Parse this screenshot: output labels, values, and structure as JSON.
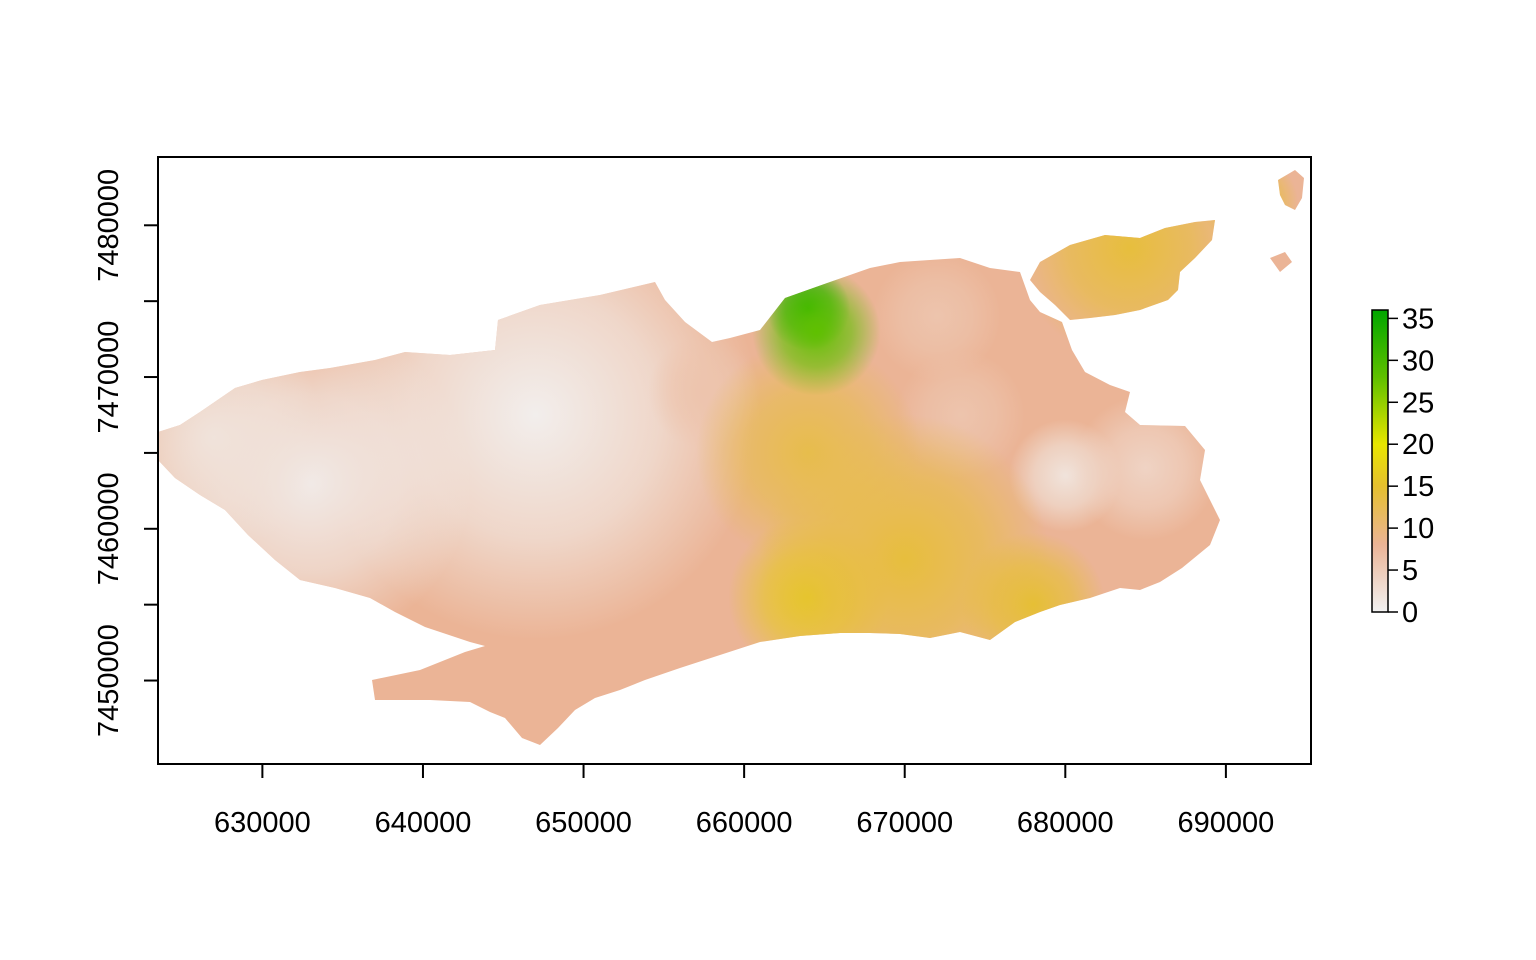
{
  "chart_data": {
    "type": "heatmap",
    "title": "",
    "xlabel": "",
    "ylabel": "",
    "xlim": [
      623500,
      695300
    ],
    "ylim": [
      7444500,
      7484500
    ],
    "x_ticks": [
      630000,
      640000,
      650000,
      660000,
      670000,
      680000,
      690000
    ],
    "x_tick_labels": [
      "630000",
      "640000",
      "650000",
      "660000",
      "670000",
      "680000",
      "690000"
    ],
    "y_ticks": [
      7450000,
      7455000,
      7460000,
      7465000,
      7470000,
      7475000,
      7480000
    ],
    "y_tick_labels": [
      "7450000",
      "7460000",
      "7470000",
      "7480000"
    ],
    "y_labeled_ticks": [
      7450000,
      7460000,
      7470000,
      7480000
    ],
    "legend": {
      "placement": "right",
      "range": [
        0,
        36
      ],
      "ticks": [
        0,
        5,
        10,
        15,
        20,
        25,
        30,
        35
      ],
      "tick_labels": [
        "0",
        "5",
        "10",
        "15",
        "20",
        "25",
        "30",
        "35"
      ],
      "color_stops": [
        {
          "value": 0,
          "color": "#f2f2f2"
        },
        {
          "value": 8,
          "color": "#ebb496"
        },
        {
          "value": 15,
          "color": "#e6c02e"
        },
        {
          "value": 20,
          "color": "#e8e600"
        },
        {
          "value": 28,
          "color": "#5fc000"
        },
        {
          "value": 36,
          "color": "#00a600"
        }
      ]
    },
    "surface": {
      "base_value": 8,
      "hotspots": [
        {
          "x": 647000,
          "y": 7467500,
          "value": 0.5,
          "radius": 14000
        },
        {
          "x": 633000,
          "y": 7463000,
          "value": 1,
          "radius": 10000
        },
        {
          "x": 627000,
          "y": 7466000,
          "value": 2,
          "radius": 7000
        },
        {
          "x": 680000,
          "y": 7463500,
          "value": 2,
          "radius": 3500
        },
        {
          "x": 685000,
          "y": 7464000,
          "value": 4,
          "radius": 4500
        },
        {
          "x": 672000,
          "y": 7474000,
          "value": 6,
          "radius": 4000
        },
        {
          "x": 673500,
          "y": 7467500,
          "value": 6,
          "radius": 4000
        },
        {
          "x": 657500,
          "y": 7469000,
          "value": 6,
          "radius": 3500
        },
        {
          "x": 664000,
          "y": 7455500,
          "value": 16,
          "radius": 5000
        },
        {
          "x": 670000,
          "y": 7458000,
          "value": 14,
          "radius": 9000
        },
        {
          "x": 678000,
          "y": 7455000,
          "value": 14.5,
          "radius": 4500
        },
        {
          "x": 664000,
          "y": 7465000,
          "value": 13,
          "radius": 7000
        },
        {
          "x": 684000,
          "y": 7478500,
          "value": 14,
          "radius": 7000
        },
        {
          "x": 691500,
          "y": 7481500,
          "value": 15,
          "radius": 3000
        },
        {
          "x": 664000,
          "y": 7474500,
          "value": 35,
          "radius": 2600
        },
        {
          "x": 664500,
          "y": 7473000,
          "value": 28,
          "radius": 4000
        }
      ]
    }
  }
}
